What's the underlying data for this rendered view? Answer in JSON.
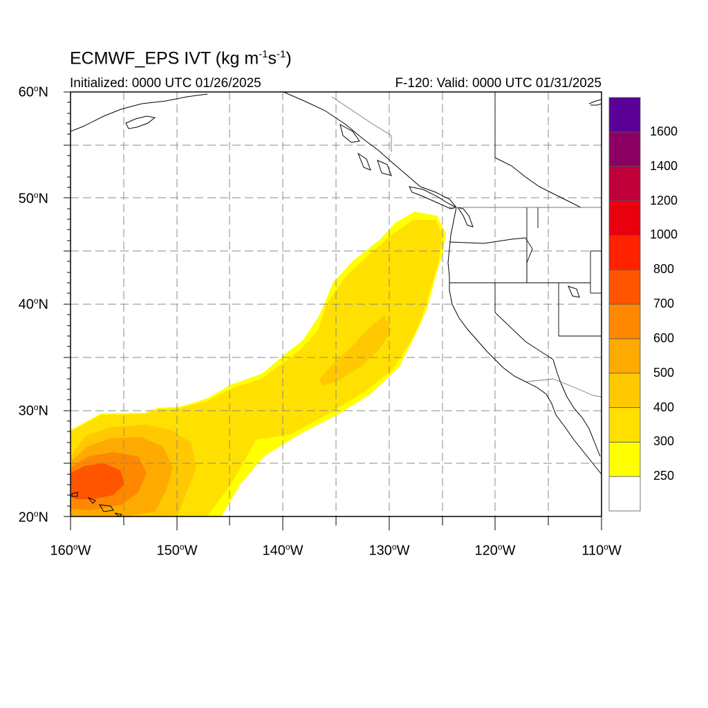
{
  "title": {
    "prefix": "ECMWF_EPS IVT (kg m",
    "sup1": "-1",
    "middle": "s",
    "sup2": "-1",
    "suffix": ")"
  },
  "initialized": "Initialized: 0000 UTC 01/26/2025",
  "valid": "F-120: Valid: 0000 UTC 01/31/2025",
  "latitude_labels": [
    {
      "value": "60",
      "suffix": "N"
    },
    {
      "value": "50",
      "suffix": "N"
    },
    {
      "value": "40",
      "suffix": "N"
    },
    {
      "value": "30",
      "suffix": "N"
    },
    {
      "value": "20",
      "suffix": "N"
    }
  ],
  "longitude_labels": [
    {
      "value": "160",
      "suffix": "W"
    },
    {
      "value": "150",
      "suffix": "W"
    },
    {
      "value": "140",
      "suffix": "W"
    },
    {
      "value": "130",
      "suffix": "W"
    },
    {
      "value": "120",
      "suffix": "W"
    },
    {
      "value": "110",
      "suffix": "W"
    }
  ],
  "colorbar": {
    "labels": [
      "250",
      "300",
      "400",
      "500",
      "600",
      "700",
      "800",
      "1000",
      "1200",
      "1400",
      "1600"
    ],
    "colors": [
      "#ffffff",
      "#ffff00",
      "#ffe000",
      "#ffc800",
      "#ffaa00",
      "#ff8800",
      "#ff5500",
      "#ff2200",
      "#e8000e",
      "#c0003a",
      "#8c0064",
      "#5a0096"
    ]
  },
  "colors": {
    "frame": "#000000",
    "grid": "#888888",
    "coast": "#000000",
    "political": "#777777"
  }
}
